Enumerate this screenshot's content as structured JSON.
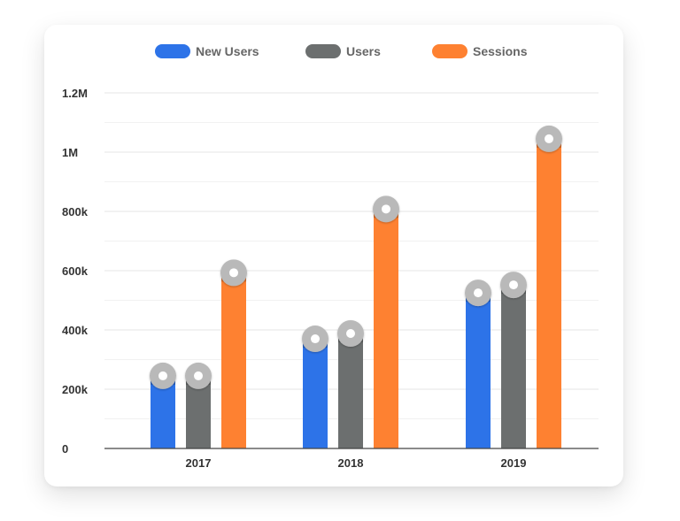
{
  "chart_data": {
    "type": "bar",
    "categories": [
      "2017",
      "2018",
      "2019"
    ],
    "series": [
      {
        "name": "New Users",
        "values": [
          245000,
          370000,
          525000
        ],
        "color": "#2d73e8"
      },
      {
        "name": "Users",
        "values": [
          245000,
          388000,
          552000
        ],
        "color": "#6c6f6f"
      },
      {
        "name": "Sessions",
        "values": [
          593000,
          808000,
          1045000
        ],
        "color": "#fe8131"
      }
    ],
    "y_ticks": [
      {
        "value": 0,
        "label": "0"
      },
      {
        "value": 200000,
        "label": "200k"
      },
      {
        "value": 400000,
        "label": "400k"
      },
      {
        "value": 600000,
        "label": "600k"
      },
      {
        "value": 800000,
        "label": "800k"
      },
      {
        "value": 1000000,
        "label": "1M"
      },
      {
        "value": 1200000,
        "label": "1.2M"
      }
    ],
    "ylim": [
      0,
      1200000
    ],
    "grid": true,
    "legend_position": "top",
    "marker_color": "#b9b9b9",
    "marker_center_color": "#ffffff"
  }
}
